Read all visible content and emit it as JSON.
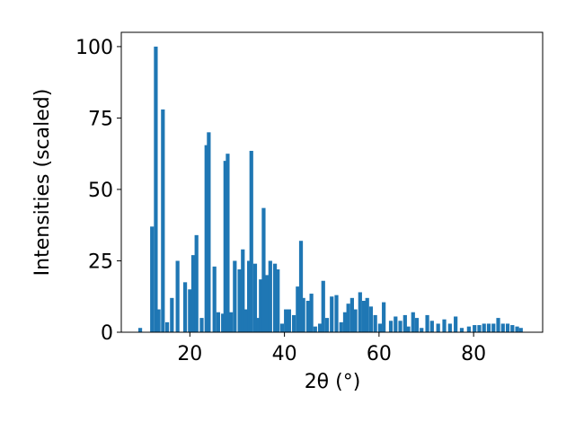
{
  "chart_data": {
    "type": "bar",
    "xlabel": "2θ (°)",
    "ylabel": "Intensities (scaled)",
    "x": [
      9.5,
      12,
      12.8,
      13.4,
      14.3,
      15.2,
      16.2,
      17.4,
      19,
      20,
      20.7,
      21.4,
      22.5,
      23.5,
      24,
      25.2,
      26,
      27,
      27.5,
      28,
      28.7,
      29.5,
      30.5,
      31.2,
      31.8,
      32.5,
      33,
      33.8,
      34.5,
      35,
      35.6,
      36.3,
      37,
      38,
      38.6,
      39.5,
      40.3,
      41,
      42,
      42.8,
      43.5,
      44,
      45,
      45.7,
      46.5,
      47.5,
      48.2,
      49,
      50,
      51,
      52,
      52.8,
      53.5,
      54.3,
      55,
      56,
      56.8,
      57.5,
      58.3,
      59.2,
      60.2,
      61,
      62.5,
      63.5,
      64.5,
      65.5,
      66.2,
      67.2,
      68,
      69,
      70.2,
      71.2,
      72.5,
      73.8,
      75,
      76.2,
      77.5,
      79,
      80.2,
      81.2,
      82.2,
      83.2,
      84.2,
      85.2,
      86.2,
      87.2,
      88.2,
      89.2,
      90
    ],
    "values": [
      1.5,
      37,
      100,
      8,
      78,
      3.5,
      12,
      25,
      17.5,
      15,
      27,
      34,
      5,
      65.5,
      70,
      23,
      7,
      6.5,
      60,
      62.5,
      7,
      25,
      22,
      29,
      8,
      25,
      63.5,
      24,
      5,
      18.5,
      43.5,
      20,
      25,
      24,
      22,
      3,
      8,
      8,
      6,
      16,
      32,
      12,
      11,
      13.5,
      2,
      3,
      18,
      5,
      12.5,
      13,
      3.5,
      7,
      10,
      12,
      8,
      14,
      11,
      12,
      9,
      6,
      3,
      10.5,
      4,
      5.5,
      4,
      6,
      2,
      7,
      5,
      1.5,
      6,
      4,
      3,
      4.5,
      3,
      5.5,
      1.5,
      2,
      2.5,
      2.5,
      3,
      3,
      3,
      5,
      3,
      3,
      2.5,
      2,
      1.5
    ],
    "color": "#1f77b4",
    "xlim": [
      5.5,
      94.6
    ],
    "ylim": [
      0,
      105
    ],
    "xticks": [
      20,
      40,
      60,
      80
    ],
    "yticks": [
      0,
      25,
      50,
      75,
      100
    ]
  }
}
